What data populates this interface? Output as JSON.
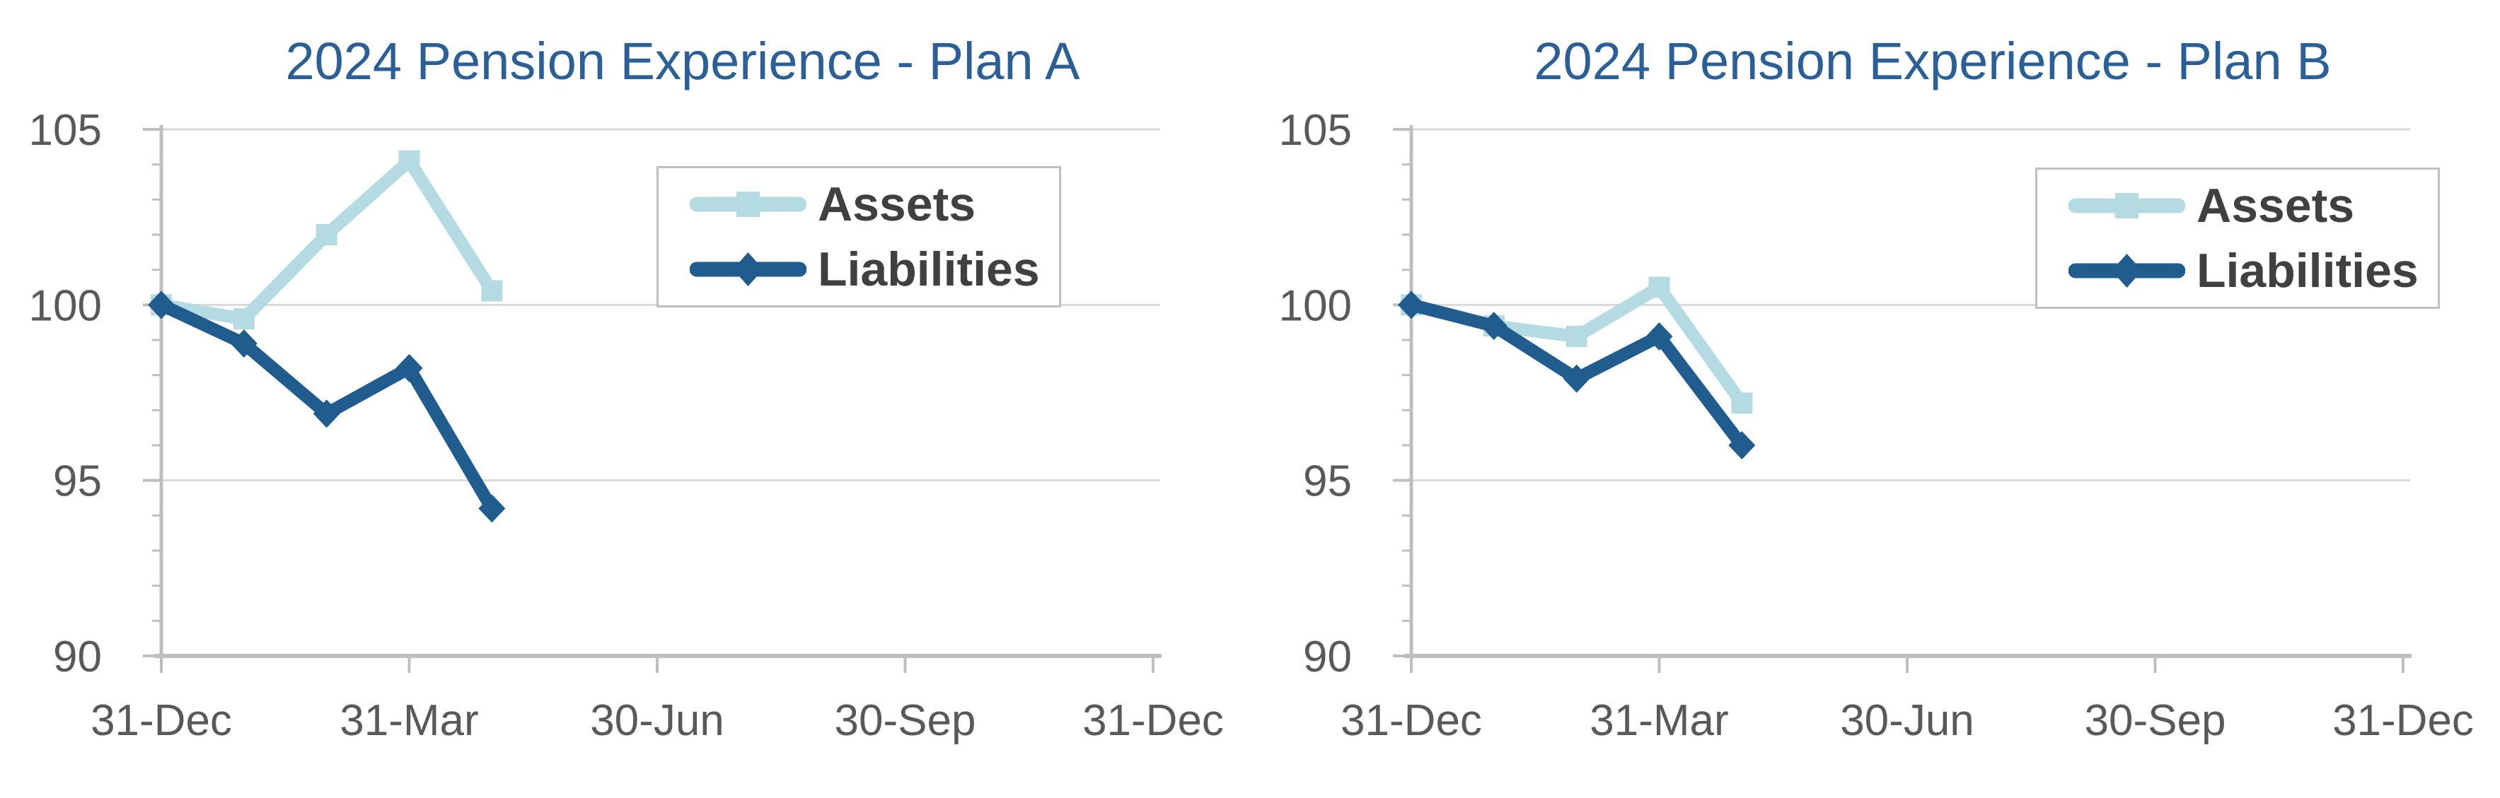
{
  "style": {
    "background": "#FFFFFF",
    "title_color": "#2A5F97",
    "axis_text_color": "#595959",
    "legend_text_color": "#404040",
    "gridline_color": "#D9D9D9",
    "axis_line_color": "#BFBFBF",
    "assets_color": "#B4DAE2",
    "liabilities_color": "#205C8D"
  },
  "chart_data": [
    {
      "type": "line",
      "title": "2024 Pension Experience - Plan A",
      "xlabel": "",
      "ylabel": "",
      "ylim": [
        90,
        105
      ],
      "y_ticks": [
        90,
        95,
        100,
        105
      ],
      "grid": "horizontal-on",
      "legend_position": "upper-right-inside",
      "x_range_months": [
        0,
        12
      ],
      "x_tick_months": [
        0,
        3,
        6,
        9,
        12
      ],
      "x_tick_labels": [
        "31-Dec",
        "31-Mar",
        "30-Jun",
        "30-Sep",
        "31-Dec"
      ],
      "series": [
        {
          "name": "Assets",
          "color": "#B4DAE2",
          "marker": "square",
          "months": [
            0,
            1,
            2,
            3,
            4
          ],
          "values": [
            100.0,
            99.6,
            102.0,
            104.1,
            100.4
          ]
        },
        {
          "name": "Liabilities",
          "color": "#205C8D",
          "marker": "diamond",
          "months": [
            0,
            1,
            2,
            3,
            4
          ],
          "values": [
            100.0,
            98.9,
            96.9,
            98.2,
            94.2
          ]
        }
      ]
    },
    {
      "type": "line",
      "title": "2024 Pension Experience - Plan B",
      "xlabel": "",
      "ylabel": "",
      "ylim": [
        90,
        105
      ],
      "y_ticks": [
        90,
        95,
        100,
        105
      ],
      "grid": "horizontal-on",
      "legend_position": "upper-right-inside",
      "x_range_months": [
        0,
        12
      ],
      "x_tick_months": [
        0,
        3,
        6,
        9,
        12
      ],
      "x_tick_labels": [
        "31-Dec",
        "31-Mar",
        "30-Jun",
        "30-Sep",
        "31-Dec"
      ],
      "series": [
        {
          "name": "Assets",
          "color": "#B4DAE2",
          "marker": "square",
          "months": [
            0,
            1,
            2,
            3,
            4
          ],
          "values": [
            100.0,
            99.4,
            99.1,
            100.5,
            97.2
          ]
        },
        {
          "name": "Liabilities",
          "color": "#205C8D",
          "marker": "diamond",
          "months": [
            0,
            1,
            2,
            3,
            4
          ],
          "values": [
            100.0,
            99.4,
            97.9,
            99.1,
            96.0
          ]
        }
      ]
    }
  ]
}
